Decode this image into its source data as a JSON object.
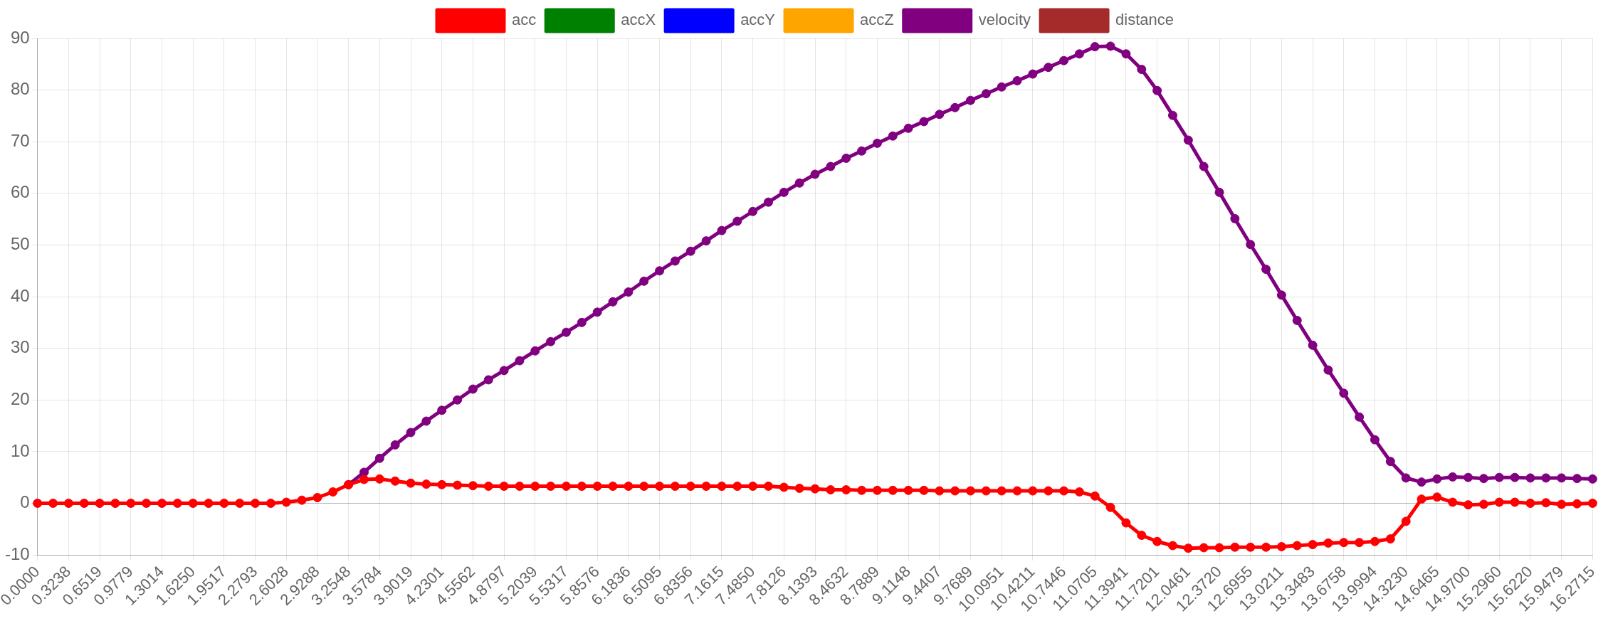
{
  "chart_data": {
    "type": "line",
    "categories": [
      "0.0000",
      null,
      "0.3238",
      null,
      "0.6519",
      null,
      "0.9779",
      null,
      "1.3014",
      null,
      "1.6250",
      null,
      "1.9517",
      null,
      "2.2793",
      null,
      "2.6028",
      null,
      "2.9288",
      null,
      "3.2548",
      null,
      "3.5784",
      null,
      "3.9019",
      null,
      "4.2301",
      null,
      "4.5562",
      null,
      "4.8797",
      null,
      "5.2039",
      null,
      "5.5317",
      null,
      "5.8576",
      null,
      "6.1836",
      null,
      "6.5095",
      null,
      "6.8356",
      null,
      "7.1615",
      null,
      "7.4850",
      null,
      "7.8126",
      null,
      "8.1393",
      null,
      "8.4632",
      null,
      "8.7889",
      null,
      "9.1148",
      null,
      "9.4407",
      null,
      "9.7689",
      null,
      "10.0951",
      null,
      "10.4211",
      null,
      "10.7446",
      null,
      "11.0705",
      null,
      "11.3941",
      null,
      "11.7201",
      null,
      "12.0461",
      null,
      "12.3720",
      null,
      "12.6955",
      null,
      "13.0211",
      null,
      "13.3483",
      null,
      "13.6758",
      null,
      "13.9994",
      null,
      "14.3230",
      null,
      "14.6465",
      null,
      "14.9700",
      null,
      "15.2960",
      null,
      "15.6220",
      null,
      "15.9479",
      null,
      "16.2715"
    ],
    "series": [
      {
        "name": "acc",
        "color": "#ff0000",
        "values": [
          0,
          0,
          0,
          0,
          0,
          0,
          0,
          0,
          0,
          0,
          0,
          0,
          0,
          0,
          0,
          0,
          0.2,
          0.6,
          1.1,
          2.2,
          3.6,
          4.6,
          4.7,
          4.3,
          3.9,
          3.7,
          3.6,
          3.5,
          3.4,
          3.3,
          3.3,
          3.3,
          3.3,
          3.3,
          3.3,
          3.3,
          3.3,
          3.3,
          3.3,
          3.3,
          3.3,
          3.3,
          3.3,
          3.3,
          3.3,
          3.3,
          3.3,
          3.3,
          3.1,
          2.9,
          2.8,
          2.6,
          2.6,
          2.5,
          2.5,
          2.5,
          2.5,
          2.5,
          2.4,
          2.4,
          2.4,
          2.4,
          2.4,
          2.4,
          2.4,
          2.4,
          2.4,
          2.2,
          1.4,
          -0.8,
          -3.8,
          -6.2,
          -7.4,
          -8.2,
          -8.7,
          -8.6,
          -8.6,
          -8.5,
          -8.5,
          -8.5,
          -8.4,
          -8.2,
          -8.0,
          -7.7,
          -7.6,
          -7.6,
          -7.4,
          -6.9,
          -3.5,
          0.8,
          1.2,
          0.2,
          -0.3,
          -0.2,
          0.2,
          0.2,
          0,
          0.1,
          -0.2,
          -0.1,
          0
        ]
      },
      {
        "name": "accX",
        "color": "#008000",
        "values": [
          null,
          null,
          null,
          null,
          null,
          null,
          null,
          null,
          null,
          null,
          null,
          null,
          null,
          null,
          null,
          null,
          null,
          null,
          null,
          null,
          null,
          null,
          null,
          null,
          null,
          null,
          null,
          null,
          null,
          null,
          null,
          null,
          null,
          null,
          null,
          null,
          null,
          null,
          null,
          null,
          null,
          null,
          null,
          null,
          null,
          null,
          null,
          null,
          null,
          null,
          null,
          null,
          null,
          null,
          null,
          null,
          null,
          null,
          null,
          null,
          null,
          null,
          null,
          null,
          null,
          null,
          null,
          null,
          null,
          null,
          null,
          null,
          null,
          null,
          null,
          null,
          null,
          null,
          null,
          null,
          null,
          null,
          null,
          null,
          null,
          null,
          null,
          null,
          null,
          null,
          null,
          null,
          null,
          null,
          null,
          null,
          null,
          null,
          null,
          null,
          null
        ]
      },
      {
        "name": "accY",
        "color": "#0000ff",
        "values": [
          null,
          null,
          null,
          null,
          null,
          null,
          null,
          null,
          null,
          null,
          null,
          null,
          null,
          null,
          null,
          null,
          null,
          null,
          null,
          null,
          null,
          null,
          null,
          null,
          null,
          null,
          null,
          null,
          null,
          null,
          null,
          null,
          null,
          null,
          null,
          null,
          null,
          null,
          null,
          null,
          null,
          null,
          null,
          null,
          null,
          null,
          null,
          null,
          null,
          null,
          null,
          null,
          null,
          null,
          null,
          null,
          null,
          null,
          null,
          null,
          null,
          null,
          null,
          null,
          null,
          null,
          null,
          null,
          null,
          null,
          null,
          null,
          null,
          null,
          null,
          null,
          null,
          null,
          null,
          null,
          null,
          null,
          null,
          null,
          null,
          null,
          null,
          null,
          null,
          null,
          null,
          null,
          null,
          null,
          null,
          null,
          null,
          null,
          null,
          null,
          null
        ]
      },
      {
        "name": "accZ",
        "color": "#ffa500",
        "values": [
          null,
          null,
          null,
          null,
          null,
          null,
          null,
          null,
          null,
          null,
          null,
          null,
          null,
          null,
          null,
          null,
          null,
          null,
          null,
          null,
          null,
          null,
          null,
          null,
          null,
          null,
          null,
          null,
          null,
          null,
          null,
          null,
          null,
          null,
          null,
          null,
          null,
          null,
          null,
          null,
          null,
          null,
          null,
          null,
          null,
          null,
          null,
          null,
          null,
          null,
          null,
          null,
          null,
          null,
          null,
          null,
          null,
          null,
          null,
          null,
          null,
          null,
          null,
          null,
          null,
          null,
          null,
          null,
          null,
          null,
          null,
          null,
          null,
          null,
          null,
          null,
          null,
          null,
          null,
          null,
          null,
          null,
          null,
          null,
          null,
          null,
          null,
          null,
          null,
          null,
          null,
          null,
          null,
          null,
          null,
          null,
          null,
          null,
          null,
          null,
          null
        ]
      },
      {
        "name": "velocity",
        "color": "#800080",
        "values": [
          null,
          null,
          null,
          null,
          null,
          null,
          null,
          null,
          null,
          null,
          null,
          null,
          null,
          null,
          null,
          null,
          null,
          null,
          null,
          null,
          3.6,
          6.0,
          8.7,
          11.3,
          13.7,
          15.9,
          18.0,
          20.0,
          22.1,
          23.9,
          25.7,
          27.6,
          29.5,
          31.3,
          33.1,
          35.0,
          37.0,
          39.0,
          40.9,
          43.0,
          45.0,
          46.9,
          48.8,
          50.8,
          52.8,
          54.6,
          56.5,
          58.3,
          60.2,
          62.0,
          63.7,
          65.2,
          66.8,
          68.2,
          69.7,
          71.1,
          72.6,
          73.9,
          75.3,
          76.6,
          78.0,
          79.3,
          80.6,
          81.8,
          83.1,
          84.4,
          85.7,
          87.0,
          88.4,
          88.5,
          87.0,
          84.0,
          79.9,
          75.1,
          70.3,
          65.2,
          60.2,
          55.1,
          50.1,
          45.3,
          40.3,
          35.4,
          30.6,
          25.8,
          21.3,
          16.7,
          12.3,
          8.1,
          4.9,
          4.1,
          4.7,
          5.1,
          5.0,
          4.8,
          5.0,
          5.0,
          4.9,
          4.9,
          4.9,
          4.8,
          4.7
        ]
      },
      {
        "name": "distance",
        "color": "#a52a2a",
        "values": [
          null,
          null,
          null,
          null,
          null,
          null,
          null,
          null,
          null,
          null,
          null,
          null,
          null,
          null,
          null,
          null,
          null,
          null,
          null,
          null,
          null,
          null,
          null,
          null,
          null,
          null,
          null,
          null,
          null,
          null,
          null,
          null,
          null,
          null,
          null,
          null,
          null,
          null,
          null,
          null,
          null,
          null,
          null,
          null,
          null,
          null,
          null,
          null,
          null,
          null,
          null,
          null,
          null,
          null,
          null,
          null,
          null,
          null,
          null,
          null,
          null,
          null,
          null,
          null,
          null,
          null,
          null,
          null,
          null,
          null,
          null,
          null,
          null,
          null,
          null,
          null,
          null,
          null,
          null,
          null,
          null,
          null,
          null,
          null,
          null,
          null,
          null,
          null,
          null,
          null,
          null,
          null,
          null,
          null,
          null,
          null,
          null,
          null,
          null,
          null,
          null
        ]
      }
    ],
    "ylim": [
      -10,
      90
    ],
    "yticks": [
      -10,
      0,
      10,
      20,
      30,
      40,
      50,
      60,
      70,
      80,
      90
    ],
    "grid": true,
    "legend": "top",
    "marker": "circle",
    "line_style": "solid"
  }
}
